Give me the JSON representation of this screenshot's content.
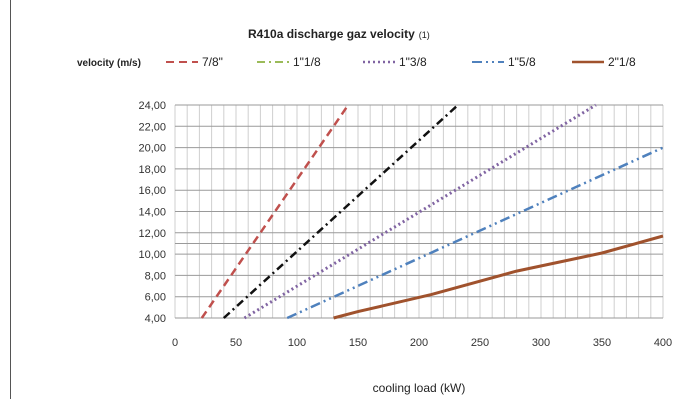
{
  "chart_data": {
    "type": "line",
    "title": "R410a discharge gaz velocity",
    "title_note": "(1)",
    "ylabel": "velocity (m/s)",
    "xlabel": "cooling load (kW)",
    "xlim": [
      0,
      400
    ],
    "ylim": [
      4,
      24
    ],
    "x_ticks": [
      "0",
      "50",
      "100",
      "150",
      "200",
      "250",
      "300",
      "350",
      "400"
    ],
    "x_tick_values": [
      0,
      50,
      100,
      150,
      200,
      250,
      300,
      350,
      400
    ],
    "y_ticks": [
      "4,00",
      "6,00",
      "8,00",
      "10,00",
      "12,00",
      "14,00",
      "16,00",
      "18,00",
      "20,00",
      "22,00",
      "24,00"
    ],
    "y_tick_values": [
      4,
      6,
      8,
      10,
      12,
      14,
      16,
      18,
      20,
      22,
      24
    ],
    "extra_h_gridlines": [
      11
    ],
    "grid": true,
    "legend_position": "top",
    "series": [
      {
        "name": "7/8\"",
        "color": "#c0504d",
        "dash": "8,5",
        "width": 2,
        "points": [
          [
            22,
            4
          ],
          [
            142,
            24
          ]
        ]
      },
      {
        "name": "1\"1/8",
        "color": "#111111",
        "dash": "8,4,2,4",
        "width": 2,
        "points": [
          [
            40,
            4
          ],
          [
            232,
            24
          ]
        ]
      },
      {
        "name": "1\"3/8",
        "color": "#8064a2",
        "dash": "2,3",
        "width": 2.5,
        "points": [
          [
            57,
            4
          ],
          [
            345,
            24
          ]
        ]
      },
      {
        "name": "1\"5/8",
        "color": "#4f81bd",
        "dash": "10,4,2,4,2,4",
        "width": 2,
        "points": [
          [
            92,
            4
          ],
          [
            400,
            20
          ]
        ]
      },
      {
        "name": "2\"1/8",
        "color": "#a0522d",
        "dash": "",
        "width": 2.5,
        "points": [
          [
            130,
            4
          ],
          [
            150,
            4.6
          ],
          [
            210,
            6.2
          ],
          [
            280,
            8.4
          ],
          [
            350,
            10.1
          ],
          [
            400,
            11.7
          ]
        ]
      }
    ],
    "legend_colors": {
      "series_1": "#c0504d",
      "series_2": "#9bbb59"
    }
  }
}
